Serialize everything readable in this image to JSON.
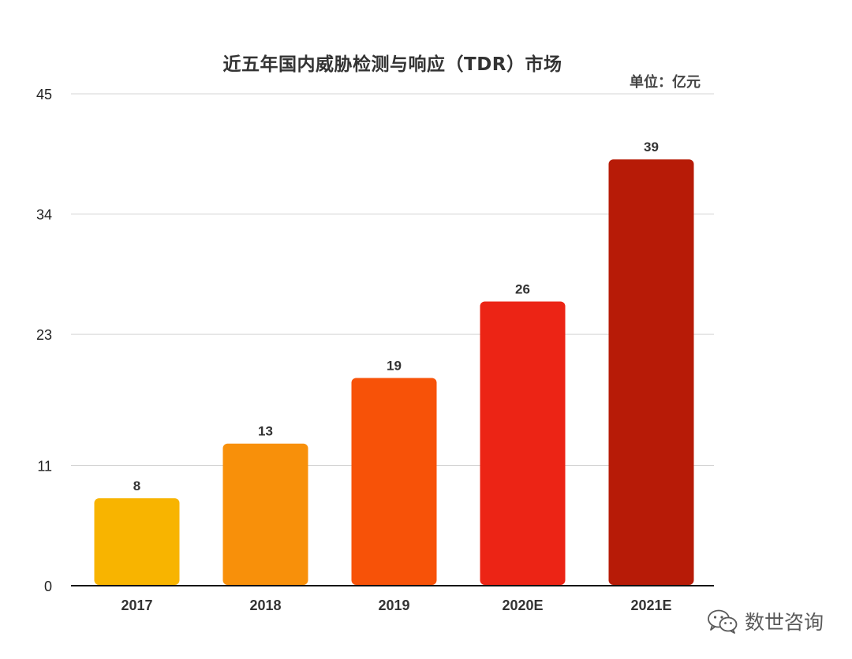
{
  "chart_data": {
    "type": "bar",
    "title": "近五年国内威胁检测与响应（TDR）市场",
    "unit_label": "单位：亿元",
    "categories": [
      "2017",
      "2018",
      "2019",
      "2020E",
      "2021E"
    ],
    "values": [
      8,
      13,
      19,
      26,
      39
    ],
    "data_labels": [
      "8",
      "13",
      "19",
      "26",
      "39"
    ],
    "yticks": [
      0,
      11,
      23,
      34,
      45
    ],
    "ylim": [
      0,
      45
    ],
    "grid": true,
    "xlabel": "",
    "ylabel": "",
    "colors": [
      "#F8B400",
      "#F8900A",
      "#F75208",
      "#EC2415",
      "#B71B07"
    ]
  },
  "watermark": {
    "icon": "wechat-icon",
    "text": "数世咨询"
  }
}
